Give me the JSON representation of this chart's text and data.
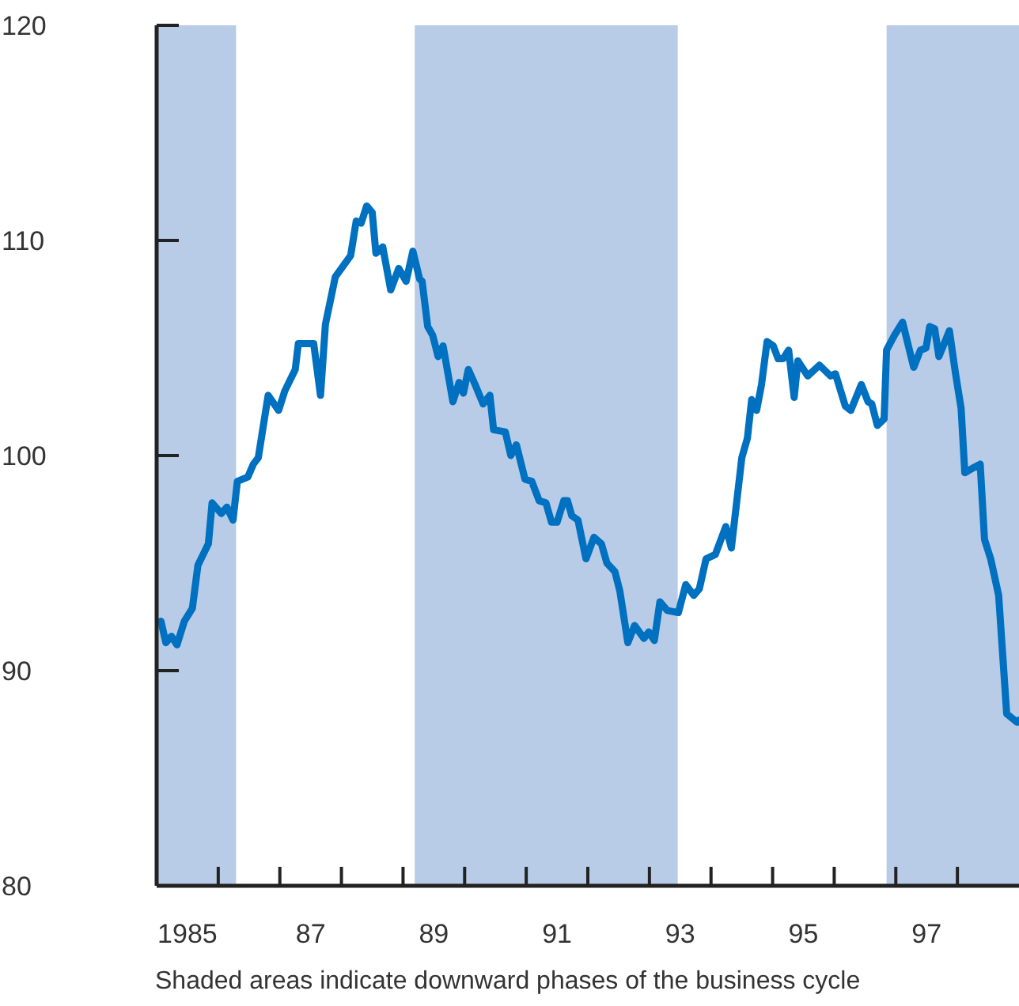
{
  "chart_data": {
    "type": "line",
    "x": [
      1984.57,
      1984.65,
      1984.74,
      1984.83,
      1984.95,
      1985.08,
      1985.17,
      1985.34,
      1985.4,
      1985.55,
      1985.64,
      1985.74,
      1985.81,
      1985.98,
      1986.07,
      1986.15,
      1986.31,
      1986.48,
      1986.58,
      1986.75,
      1986.8,
      1987.05,
      1987.16,
      1987.24,
      1987.4,
      1987.65,
      1987.74,
      1987.82,
      1987.91,
      1988.0,
      1988.06,
      1988.17,
      1988.3,
      1988.43,
      1988.55,
      1988.66,
      1988.77,
      1988.81,
      1988.9,
      1988.98,
      1989.07,
      1989.15,
      1989.31,
      1989.41,
      1989.48,
      1989.56,
      1989.67,
      1989.8,
      1989.91,
      1989.97,
      1990.16,
      1990.25,
      1990.34,
      1990.48,
      1990.59,
      1990.71,
      1990.82,
      1990.91,
      1991.0,
      1991.11,
      1991.17,
      1991.24,
      1991.34,
      1991.47,
      1991.6,
      1991.72,
      1991.81,
      1991.94,
      1992.02,
      1992.15,
      1992.26,
      1992.41,
      1992.49,
      1992.58,
      1992.67,
      1992.79,
      1992.97,
      1993.09,
      1993.22,
      1993.31,
      1993.42,
      1993.57,
      1993.74,
      1993.83,
      1994.0,
      1994.09,
      1994.16,
      1994.24,
      1994.32,
      1994.41,
      1994.51,
      1994.59,
      1994.67,
      1994.76,
      1994.85,
      1994.91,
      1995.07,
      1995.26,
      1995.44,
      1995.52,
      1995.68,
      1995.77,
      1995.94,
      1996.05,
      1996.11,
      1996.2,
      1996.31,
      1996.35,
      1996.48,
      1996.61,
      1996.79,
      1996.9,
      1996.99,
      1997.05,
      1997.13,
      1997.2,
      1997.37,
      1997.47,
      1997.56,
      1997.62,
      1997.74,
      1997.87,
      1997.94,
      1998.04,
      1998.17,
      1998.3,
      1998.47,
      1998.5
    ],
    "values": [
      92.3,
      91.3,
      91.6,
      91.2,
      92.3,
      92.9,
      94.9,
      95.9,
      97.8,
      97.3,
      97.6,
      97.0,
      98.8,
      99.0,
      99.6,
      99.9,
      102.8,
      102.1,
      103.0,
      104.0,
      105.2,
      105.2,
      102.8,
      106.1,
      108.3,
      109.3,
      110.9,
      110.8,
      111.6,
      111.3,
      109.4,
      109.7,
      107.7,
      108.7,
      108.1,
      109.5,
      108.2,
      108.1,
      106.0,
      105.6,
      104.6,
      105.1,
      102.5,
      103.4,
      102.9,
      104.0,
      103.3,
      102.4,
      102.8,
      101.2,
      101.1,
      100.0,
      100.5,
      98.9,
      98.8,
      97.9,
      97.8,
      96.9,
      96.9,
      97.9,
      97.9,
      97.2,
      97.0,
      95.2,
      96.2,
      95.9,
      95.0,
      94.6,
      93.7,
      91.3,
      92.1,
      91.5,
      91.8,
      91.4,
      93.2,
      92.8,
      92.7,
      94.0,
      93.5,
      93.8,
      95.2,
      95.4,
      96.7,
      95.7,
      99.9,
      100.8,
      102.6,
      102.1,
      103.3,
      105.3,
      105.1,
      104.5,
      104.5,
      104.9,
      102.7,
      104.4,
      103.7,
      104.2,
      103.7,
      103.8,
      102.3,
      102.1,
      103.3,
      102.5,
      102.4,
      101.4,
      101.7,
      104.9,
      105.6,
      106.2,
      104.1,
      104.9,
      105.0,
      106.0,
      105.9,
      104.6,
      105.8,
      103.8,
      102.2,
      99.2,
      99.4,
      99.6,
      96.1,
      95.2,
      93.5,
      88.0,
      87.6,
      87.7
    ],
    "color": "#0070c0",
    "xlim": [
      1984.5,
      1998.5
    ],
    "xticks": [
      {
        "value": 1985,
        "label": "1985"
      },
      {
        "value": 1985.5,
        "label": null
      },
      {
        "value": 1986.5,
        "label": null
      },
      {
        "value": 1987,
        "label": "87"
      },
      {
        "value": 1987.5,
        "label": null
      },
      {
        "value": 1988.5,
        "label": null
      },
      {
        "value": 1989,
        "label": "89"
      },
      {
        "value": 1989.5,
        "label": null
      },
      {
        "value": 1990.5,
        "label": null
      },
      {
        "value": 1991,
        "label": "91"
      },
      {
        "value": 1991.5,
        "label": null
      },
      {
        "value": 1992.5,
        "label": null
      },
      {
        "value": 1993,
        "label": "93"
      },
      {
        "value": 1993.5,
        "label": null
      },
      {
        "value": 1994.5,
        "label": null
      },
      {
        "value": 1995,
        "label": "95"
      },
      {
        "value": 1995.5,
        "label": null
      },
      {
        "value": 1996.5,
        "label": null
      },
      {
        "value": 1997,
        "label": "97"
      },
      {
        "value": 1997.5,
        "label": null
      }
    ],
    "ylim": [
      80,
      120
    ],
    "yticks": [
      80,
      90,
      100,
      110,
      120
    ],
    "bands": [
      {
        "axis": "x",
        "from": 1984.5,
        "to": 1985.79,
        "color": "#b8cce8"
      },
      {
        "axis": "x",
        "from": 1988.69,
        "to": 1992.96,
        "color": "#b8cce8"
      },
      {
        "axis": "x",
        "from": 1996.35,
        "to": 1998.5,
        "color": "#b8cce8"
      }
    ],
    "annotations": [
      "Shaded areas indicate downward phases of the business cycle"
    ]
  }
}
